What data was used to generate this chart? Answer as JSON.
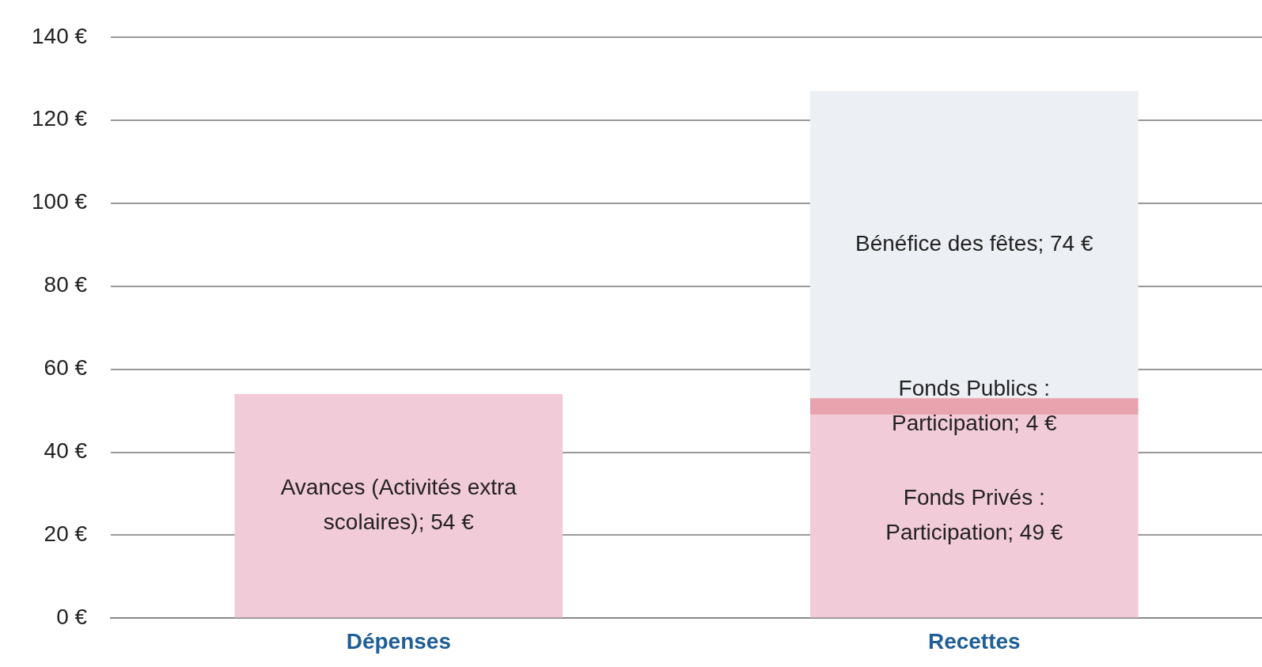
{
  "chart_data": {
    "type": "bar",
    "stacked": true,
    "categories": [
      "Dépenses",
      "Recettes"
    ],
    "series": [
      {
        "color": "#f2cbd8",
        "values": [
          54,
          null
        ],
        "value_labels": [
          "Avances (Activités extra scolaires); 54 €",
          null
        ]
      },
      {
        "color": "#f2cbd8",
        "values": [
          null,
          49
        ],
        "value_labels": [
          null,
          "Fonds Privés : Participation; 49 €"
        ]
      },
      {
        "color": "#e8a3ae",
        "values": [
          null,
          4
        ],
        "value_labels": [
          null,
          "Fonds Publics : Participation; 4 €"
        ]
      },
      {
        "color": "#eceff3",
        "values": [
          null,
          74
        ],
        "value_labels": [
          null,
          "Bénéfice des fêtes; 74 €"
        ]
      }
    ],
    "ylim": [
      0,
      140
    ],
    "yticks": [
      {
        "value": 0,
        "label": "0 €"
      },
      {
        "value": 20,
        "label": "20 €"
      },
      {
        "value": 40,
        "label": "40 €"
      },
      {
        "value": 60,
        "label": "60 €"
      },
      {
        "value": 80,
        "label": "80 €"
      },
      {
        "value": 100,
        "label": "100 €"
      },
      {
        "value": 120,
        "label": "120 €"
      },
      {
        "value": 140,
        "label": "140 €"
      }
    ],
    "grid": "y",
    "legend": false
  }
}
